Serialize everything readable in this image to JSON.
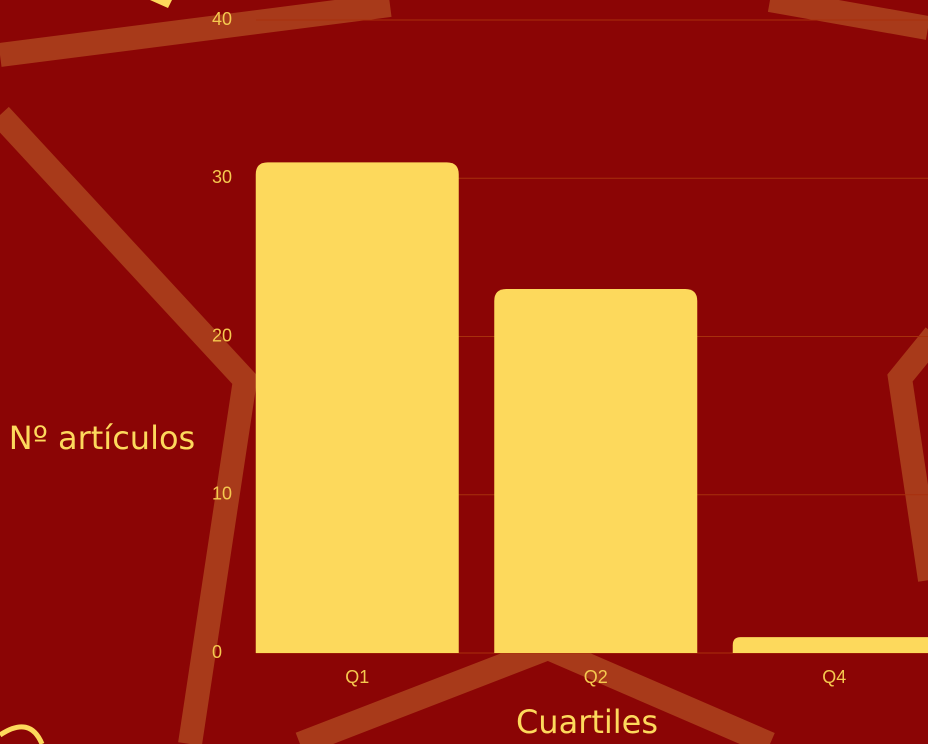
{
  "chart_data": {
    "type": "bar",
    "x_label": "Cuartiles",
    "y_label": "Nº artículos",
    "categories": [
      "Q1",
      "Q2",
      "Q4"
    ],
    "values": [
      31,
      23,
      1
    ],
    "color": "#fdd95c",
    "ylim": [
      0,
      40
    ],
    "yticks": [
      0,
      10,
      20,
      30,
      40
    ],
    "grid": true
  }
}
